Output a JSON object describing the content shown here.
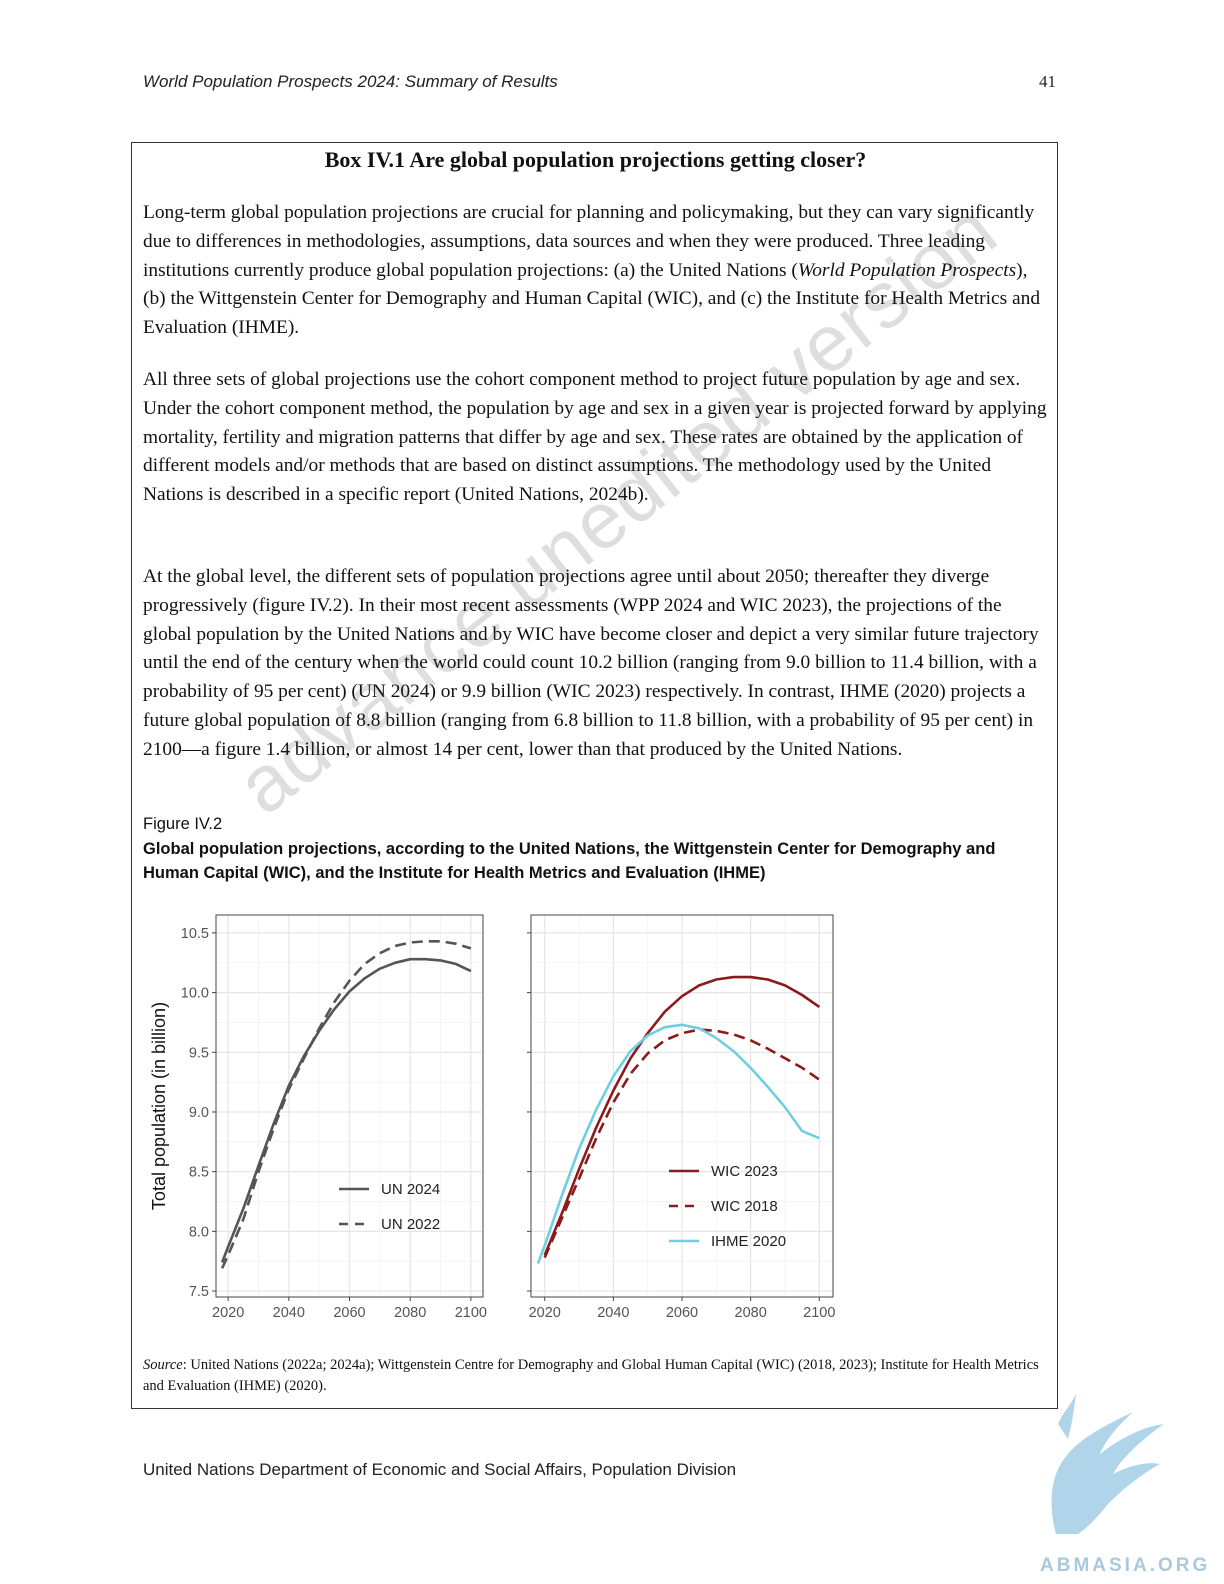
{
  "header": {
    "running_title": "World Population Prospects 2024: Summary of Results",
    "page_number": "41"
  },
  "box": {
    "title": "Box IV.1 Are global population projections getting closer?",
    "para1": {
      "text1": "Long-term global population projections are crucial for planning and policymaking, but they can vary significantly due to differences in methodologies, assumptions, data sources and when they were produced. Three leading institutions currently produce global population projections: (a) the United Nations (",
      "italic": "World Population Prospects",
      "text2": "), (b) the Wittgenstein Center for Demography and Human Capital (WIC), and (c) the Institute for Health Metrics and Evaluation (IHME)."
    },
    "para2": "All three sets of global projections use the cohort component method to project future population by age and sex. Under the cohort component method, the population by age and sex in a given year is projected forward by applying mortality, fertility and migration patterns that differ by age and sex. These rates are obtained by the application of different models and/or methods that are based on distinct assumptions. The methodology used by the United Nations is described in a specific report (United Nations, 2024b).",
    "para3": "At the global level, the different sets of population projections agree until about 2050; thereafter they diverge progressively (figure IV.2). In their most recent assessments (WPP 2024 and WIC 2023), the projections of the global population by the United Nations and by WIC have become closer and depict a very similar future trajectory until the end of the century when the world could count 10.2 billion (ranging from 9.0 billion to 11.4 billion, with a probability of 95 per cent) (UN 2024) or 9.9 billion (WIC 2023) respectively. In contrast, IHME (2020) projects a future global population of 8.8 billion (ranging from 6.8 billion to 11.8 billion, with a probability of 95 per cent) in 2100—a figure 1.4 billion, or almost 14 per cent, lower than that produced by the United Nations."
  },
  "figure": {
    "label": "Figure IV.2",
    "title": "Global population projections, according to the United Nations, the Wittgenstein Center for Demography and Human Capital (WIC), and the Institute for Health Metrics and Evaluation (IHME)",
    "source_label": "Source",
    "source_text": ": United Nations (2022a; 2024a); Wittgenstein Centre for Demography and Global Human Capital (WIC) (2018, 2023); Institute for Health Metrics and Evaluation (IHME) (2020)."
  },
  "chart_data": [
    {
      "type": "line",
      "ylabel": "Total population (in billion)",
      "xlabel": "",
      "xlim": [
        2016,
        2104
      ],
      "ylim": [
        7.45,
        10.65
      ],
      "x_ticks": [
        "2020",
        "2040",
        "2060",
        "2080",
        "2100"
      ],
      "y_ticks": [
        "7.5",
        "8.0",
        "8.5",
        "9.0",
        "9.5",
        "10.0",
        "10.5"
      ],
      "grid": true,
      "legend_position": "bottom-right",
      "series": [
        {
          "name": "UN 2024",
          "style": "solid",
          "color": "#555555",
          "x": [
            2018,
            2020,
            2025,
            2030,
            2035,
            2040,
            2045,
            2050,
            2055,
            2060,
            2065,
            2070,
            2075,
            2080,
            2085,
            2090,
            2095,
            2100
          ],
          "y": [
            7.74,
            7.87,
            8.19,
            8.55,
            8.9,
            9.22,
            9.47,
            9.68,
            9.86,
            10.01,
            10.12,
            10.2,
            10.25,
            10.28,
            10.28,
            10.27,
            10.24,
            10.18
          ]
        },
        {
          "name": "UN 2022",
          "style": "dashed",
          "color": "#555555",
          "x": [
            2018,
            2020,
            2025,
            2030,
            2035,
            2040,
            2045,
            2050,
            2055,
            2060,
            2065,
            2070,
            2075,
            2080,
            2085,
            2090,
            2095,
            2100
          ],
          "y": [
            7.69,
            7.8,
            8.1,
            8.5,
            8.86,
            9.19,
            9.45,
            9.7,
            9.92,
            10.1,
            10.24,
            10.33,
            10.39,
            10.42,
            10.43,
            10.43,
            10.41,
            10.37
          ]
        }
      ]
    },
    {
      "type": "line",
      "xlabel": "",
      "xlim": [
        2016,
        2104
      ],
      "ylim": [
        7.45,
        10.65
      ],
      "x_ticks": [
        "2020",
        "2040",
        "2060",
        "2080",
        "2100"
      ],
      "grid": true,
      "legend_position": "bottom-right",
      "series": [
        {
          "name": "WIC 2023",
          "style": "solid",
          "color": "#8b1a1a",
          "x": [
            2020,
            2025,
            2030,
            2035,
            2040,
            2045,
            2050,
            2055,
            2060,
            2065,
            2070,
            2075,
            2080,
            2085,
            2090,
            2095,
            2100
          ],
          "y": [
            7.8,
            8.15,
            8.52,
            8.87,
            9.18,
            9.45,
            9.66,
            9.84,
            9.97,
            10.06,
            10.11,
            10.13,
            10.13,
            10.11,
            10.06,
            9.98,
            9.88
          ]
        },
        {
          "name": "WIC 2018",
          "style": "dashed",
          "color": "#8b1a1a",
          "x": [
            2020,
            2025,
            2030,
            2035,
            2040,
            2045,
            2050,
            2055,
            2060,
            2065,
            2070,
            2075,
            2080,
            2085,
            2090,
            2095,
            2100
          ],
          "y": [
            7.78,
            8.11,
            8.44,
            8.78,
            9.08,
            9.32,
            9.49,
            9.6,
            9.66,
            9.69,
            9.68,
            9.65,
            9.6,
            9.53,
            9.45,
            9.37,
            9.27
          ]
        },
        {
          "name": "IHME 2020",
          "style": "solid",
          "color": "#6fcfe0",
          "x": [
            2018,
            2020,
            2025,
            2030,
            2035,
            2040,
            2045,
            2050,
            2055,
            2060,
            2065,
            2070,
            2075,
            2080,
            2085,
            2090,
            2095,
            2100
          ],
          "y": [
            7.73,
            7.88,
            8.3,
            8.69,
            9.02,
            9.3,
            9.51,
            9.64,
            9.71,
            9.73,
            9.7,
            9.62,
            9.51,
            9.37,
            9.21,
            9.04,
            8.84,
            8.78
          ]
        }
      ]
    }
  ],
  "watermark": "advance unedited version",
  "footer": "United Nations Department of Economic and Social Affairs, Population Division",
  "brand": {
    "text": "ABMASIA.ORG",
    "color": "#7fb8dc"
  }
}
